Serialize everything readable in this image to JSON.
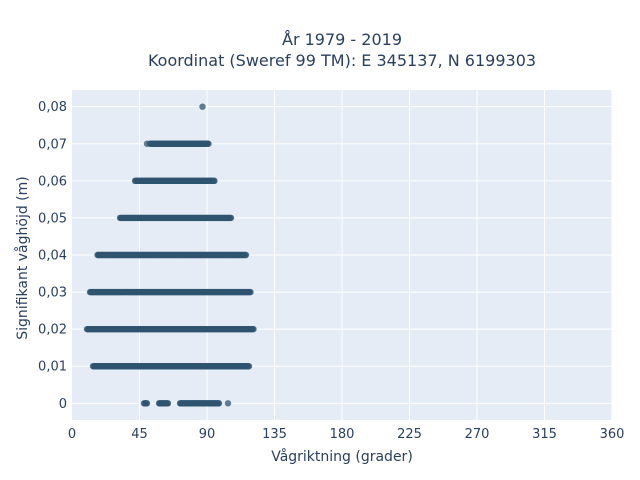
{
  "chart_data": {
    "type": "scatter",
    "title_line1": "År 1979 - 2019",
    "title_line2": "Koordinat (Sweref 99 TM): E 345137, N 6199303",
    "xlabel": "Vågriktning (grader)",
    "ylabel": "Signifikant våghöjd (m)",
    "xlim": [
      0,
      360
    ],
    "ylim": [
      -0.0045,
      0.0845
    ],
    "x_ticks": [
      0,
      45,
      90,
      135,
      180,
      225,
      270,
      315,
      360
    ],
    "x_tick_labels": [
      "0",
      "45",
      "90",
      "135",
      "180",
      "225",
      "270",
      "315",
      "360"
    ],
    "y_ticks": [
      0,
      0.01,
      0.02,
      0.03,
      0.04,
      0.05,
      0.06,
      0.07,
      0.08
    ],
    "y_tick_labels": [
      "0",
      "0,01",
      "0,02",
      "0,03",
      "0,04",
      "0,05",
      "0,06",
      "0,07",
      "0,08"
    ],
    "grid": true,
    "marker_color": "#2f5470",
    "plot_bg": "#e5ecf6",
    "series": [
      {
        "bands": [
          {
            "y": 0.0,
            "ranges": [
              [
                48,
                50
              ],
              [
                58,
                64
              ],
              [
                72,
                98
              ]
            ],
            "extra_x": [
              104
            ]
          },
          {
            "y": 0.01,
            "ranges": [
              [
                14,
                118
              ]
            ]
          },
          {
            "y": 0.02,
            "ranges": [
              [
                10,
                121
              ]
            ]
          },
          {
            "y": 0.03,
            "ranges": [
              [
                12,
                119
              ]
            ]
          },
          {
            "y": 0.04,
            "ranges": [
              [
                17,
                116
              ]
            ]
          },
          {
            "y": 0.05,
            "ranges": [
              [
                32,
                106
              ]
            ]
          },
          {
            "y": 0.06,
            "ranges": [
              [
                42,
                95
              ]
            ]
          },
          {
            "y": 0.07,
            "ranges": [
              [
                52,
                91
              ]
            ],
            "extra_x": [
              50
            ]
          },
          {
            "y": 0.08,
            "extra_x": [
              87
            ]
          }
        ]
      }
    ]
  }
}
